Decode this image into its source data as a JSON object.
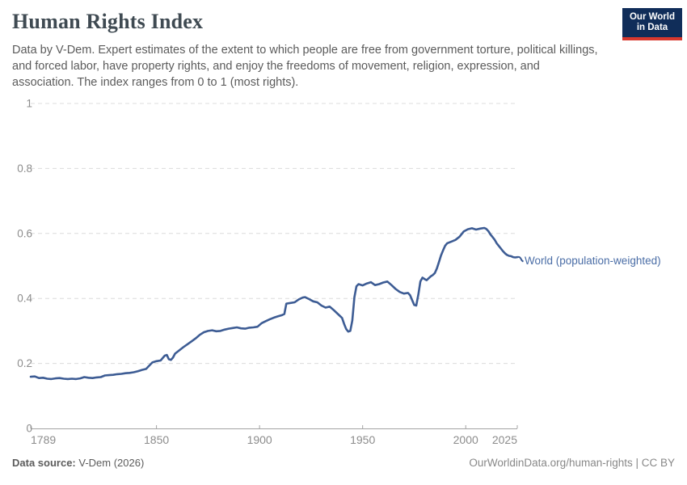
{
  "header": {
    "title": "Human Rights Index",
    "subtitle": "Data by V-Dem. Expert estimates of the extent to which people are free from government torture, political killings, and forced labor, have property rights, and enjoy the freedoms of movement, religion, expression, and association. The index ranges from 0 to 1 (most rights).",
    "logo": {
      "line1": "Our World",
      "line2": "in Data",
      "bg_color": "#102d59",
      "accent_color": "#d8382e"
    }
  },
  "chart_data": {
    "type": "line",
    "title": "Human Rights Index",
    "xlabel": "",
    "ylabel": "",
    "xlim": [
      1789,
      2025
    ],
    "ylim": [
      0,
      1
    ],
    "x_ticks": [
      1789,
      1850,
      1900,
      1950,
      2000,
      2025
    ],
    "y_ticks": [
      0,
      0.2,
      0.4,
      0.6,
      0.8,
      1
    ],
    "y_tick_labels": [
      "0",
      "0.2",
      "0.4",
      "0.6",
      "0.8",
      "1"
    ],
    "grid": "horizontal-dashed",
    "legend_position": "end-of-line-label",
    "grid_color": "#dcdcdc",
    "axis_color": "#a3a3a3",
    "tick_label_color": "#8c8c8c",
    "series": [
      {
        "name": "World (population-weighted)",
        "color": "#3d5c94",
        "label_color": "#4a6da6",
        "points": [
          [
            1789,
            0.159
          ],
          [
            1791,
            0.16
          ],
          [
            1793,
            0.155
          ],
          [
            1795,
            0.156
          ],
          [
            1797,
            0.153
          ],
          [
            1799,
            0.152
          ],
          [
            1801,
            0.154
          ],
          [
            1803,
            0.155
          ],
          [
            1805,
            0.153
          ],
          [
            1807,
            0.152
          ],
          [
            1809,
            0.153
          ],
          [
            1811,
            0.152
          ],
          [
            1813,
            0.154
          ],
          [
            1815,
            0.158
          ],
          [
            1817,
            0.156
          ],
          [
            1819,
            0.155
          ],
          [
            1821,
            0.157
          ],
          [
            1823,
            0.158
          ],
          [
            1825,
            0.163
          ],
          [
            1827,
            0.164
          ],
          [
            1829,
            0.165
          ],
          [
            1831,
            0.167
          ],
          [
            1833,
            0.168
          ],
          [
            1835,
            0.17
          ],
          [
            1837,
            0.171
          ],
          [
            1839,
            0.173
          ],
          [
            1841,
            0.176
          ],
          [
            1843,
            0.18
          ],
          [
            1845,
            0.183
          ],
          [
            1846,
            0.19
          ],
          [
            1848,
            0.203
          ],
          [
            1850,
            0.207
          ],
          [
            1852,
            0.209
          ],
          [
            1854,
            0.224
          ],
          [
            1855,
            0.226
          ],
          [
            1856,
            0.213
          ],
          [
            1857,
            0.211
          ],
          [
            1858,
            0.218
          ],
          [
            1859,
            0.23
          ],
          [
            1861,
            0.24
          ],
          [
            1863,
            0.25
          ],
          [
            1865,
            0.259
          ],
          [
            1867,
            0.268
          ],
          [
            1869,
            0.277
          ],
          [
            1871,
            0.288
          ],
          [
            1873,
            0.296
          ],
          [
            1875,
            0.3
          ],
          [
            1877,
            0.302
          ],
          [
            1879,
            0.299
          ],
          [
            1881,
            0.3
          ],
          [
            1883,
            0.304
          ],
          [
            1885,
            0.307
          ],
          [
            1887,
            0.309
          ],
          [
            1889,
            0.311
          ],
          [
            1891,
            0.308
          ],
          [
            1893,
            0.307
          ],
          [
            1895,
            0.31
          ],
          [
            1897,
            0.311
          ],
          [
            1899,
            0.313
          ],
          [
            1901,
            0.324
          ],
          [
            1903,
            0.33
          ],
          [
            1905,
            0.336
          ],
          [
            1907,
            0.341
          ],
          [
            1909,
            0.345
          ],
          [
            1911,
            0.349
          ],
          [
            1912,
            0.352
          ],
          [
            1913,
            0.384
          ],
          [
            1915,
            0.386
          ],
          [
            1917,
            0.388
          ],
          [
            1919,
            0.397
          ],
          [
            1921,
            0.403
          ],
          [
            1922,
            0.404
          ],
          [
            1924,
            0.398
          ],
          [
            1926,
            0.391
          ],
          [
            1928,
            0.388
          ],
          [
            1930,
            0.378
          ],
          [
            1932,
            0.372
          ],
          [
            1934,
            0.375
          ],
          [
            1936,
            0.364
          ],
          [
            1938,
            0.352
          ],
          [
            1940,
            0.34
          ],
          [
            1941,
            0.322
          ],
          [
            1942,
            0.306
          ],
          [
            1943,
            0.298
          ],
          [
            1944,
            0.3
          ],
          [
            1945,
            0.332
          ],
          [
            1946,
            0.404
          ],
          [
            1947,
            0.437
          ],
          [
            1948,
            0.444
          ],
          [
            1950,
            0.44
          ],
          [
            1952,
            0.446
          ],
          [
            1954,
            0.45
          ],
          [
            1956,
            0.441
          ],
          [
            1958,
            0.444
          ],
          [
            1960,
            0.449
          ],
          [
            1962,
            0.452
          ],
          [
            1964,
            0.441
          ],
          [
            1966,
            0.429
          ],
          [
            1968,
            0.42
          ],
          [
            1970,
            0.415
          ],
          [
            1972,
            0.417
          ],
          [
            1973,
            0.41
          ],
          [
            1974,
            0.395
          ],
          [
            1975,
            0.38
          ],
          [
            1976,
            0.378
          ],
          [
            1977,
            0.412
          ],
          [
            1978,
            0.452
          ],
          [
            1979,
            0.464
          ],
          [
            1980,
            0.46
          ],
          [
            1981,
            0.456
          ],
          [
            1982,
            0.462
          ],
          [
            1983,
            0.468
          ],
          [
            1984,
            0.472
          ],
          [
            1985,
            0.478
          ],
          [
            1986,
            0.492
          ],
          [
            1987,
            0.512
          ],
          [
            1988,
            0.532
          ],
          [
            1989,
            0.548
          ],
          [
            1990,
            0.562
          ],
          [
            1991,
            0.57
          ],
          [
            1993,
            0.575
          ],
          [
            1995,
            0.58
          ],
          [
            1997,
            0.59
          ],
          [
            1999,
            0.606
          ],
          [
            2001,
            0.613
          ],
          [
            2003,
            0.616
          ],
          [
            2005,
            0.612
          ],
          [
            2007,
            0.615
          ],
          [
            2009,
            0.617
          ],
          [
            2010,
            0.614
          ],
          [
            2011,
            0.607
          ],
          [
            2012,
            0.597
          ],
          [
            2013,
            0.589
          ],
          [
            2014,
            0.581
          ],
          [
            2015,
            0.57
          ],
          [
            2016,
            0.562
          ],
          [
            2017,
            0.554
          ],
          [
            2018,
            0.546
          ],
          [
            2019,
            0.539
          ],
          [
            2020,
            0.534
          ],
          [
            2021,
            0.531
          ],
          [
            2022,
            0.53
          ],
          [
            2023,
            0.527
          ],
          [
            2024,
            0.526
          ],
          [
            2025,
            0.527
          ]
        ]
      }
    ]
  },
  "footer": {
    "source_label": "Data source:",
    "source_value": " V-Dem (2026)",
    "credit": "OurWorldinData.org/human-rights | CC BY"
  }
}
